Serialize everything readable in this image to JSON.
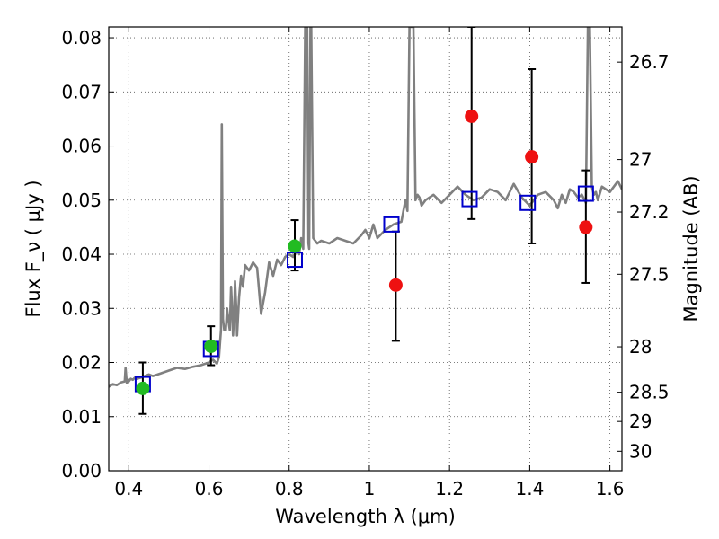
{
  "chart_data": {
    "type": "scatter",
    "title": "",
    "xlabel": "Wavelength  λ (μm)",
    "ylabel": "Flux  F_ν  ( μJy )",
    "ylabel_right": "Magnitude (AB)",
    "xlim": [
      0.35,
      1.63
    ],
    "ylim": [
      0.0,
      0.082
    ],
    "grid": true,
    "x_ticks": [
      0.4,
      0.6,
      0.8,
      1.0,
      1.2,
      1.4,
      1.6
    ],
    "x_tick_labels": [
      "0.4",
      "0.6",
      "0.8",
      "1",
      "1.2",
      "1.4",
      "1.6"
    ],
    "y_ticks": [
      0.0,
      0.01,
      0.02,
      0.03,
      0.04,
      0.05,
      0.06,
      0.07,
      0.08
    ],
    "y_tick_labels": [
      "0.00",
      "0.01",
      "0.02",
      "0.03",
      "0.04",
      "0.05",
      "0.06",
      "0.07",
      "0.08"
    ],
    "right_ticks": [
      {
        "label": "26.7",
        "flux": 0.0755
      },
      {
        "label": "27",
        "flux": 0.0575
      },
      {
        "label": "27.2",
        "flux": 0.0478
      },
      {
        "label": "27.5",
        "flux": 0.0363
      },
      {
        "label": "28",
        "flux": 0.0229
      },
      {
        "label": "28.5",
        "flux": 0.0145
      },
      {
        "label": "29",
        "flux": 0.0091
      },
      {
        "label": "30",
        "flux": 0.0036
      }
    ],
    "series": [
      {
        "kind": "spectrum",
        "color": "#808080",
        "x": [
          0.35,
          0.36,
          0.37,
          0.38,
          0.39,
          0.392,
          0.395,
          0.398,
          0.4,
          0.405,
          0.41,
          0.415,
          0.42,
          0.43,
          0.44,
          0.45,
          0.46,
          0.48,
          0.5,
          0.52,
          0.54,
          0.56,
          0.58,
          0.6,
          0.61,
          0.62,
          0.625,
          0.628,
          0.63,
          0.632,
          0.635,
          0.638,
          0.642,
          0.645,
          0.65,
          0.652,
          0.655,
          0.657,
          0.66,
          0.663,
          0.665,
          0.668,
          0.67,
          0.675,
          0.68,
          0.685,
          0.69,
          0.7,
          0.71,
          0.72,
          0.73,
          0.74,
          0.75,
          0.76,
          0.77,
          0.78,
          0.79,
          0.8,
          0.81,
          0.82,
          0.825,
          0.83,
          0.835,
          0.84,
          0.845,
          0.848,
          0.85,
          0.853,
          0.855,
          0.86,
          0.87,
          0.88,
          0.9,
          0.92,
          0.94,
          0.96,
          0.98,
          0.99,
          1.0,
          1.01,
          1.02,
          1.04,
          1.06,
          1.08,
          1.09,
          1.095,
          1.1,
          1.105,
          1.11,
          1.115,
          1.12,
          1.125,
          1.13,
          1.14,
          1.16,
          1.18,
          1.2,
          1.22,
          1.24,
          1.26,
          1.28,
          1.3,
          1.32,
          1.34,
          1.36,
          1.38,
          1.4,
          1.42,
          1.44,
          1.46,
          1.47,
          1.48,
          1.49,
          1.5,
          1.51,
          1.52,
          1.53,
          1.54,
          1.545,
          1.55,
          1.555,
          1.56,
          1.565,
          1.57,
          1.58,
          1.6,
          1.62,
          1.63
        ],
        "y": [
          0.0155,
          0.016,
          0.0158,
          0.0163,
          0.0165,
          0.019,
          0.0162,
          0.0168,
          0.0165,
          0.017,
          0.0168,
          0.0172,
          0.017,
          0.0172,
          0.0175,
          0.0178,
          0.0175,
          0.018,
          0.0185,
          0.019,
          0.0188,
          0.0192,
          0.0195,
          0.02,
          0.0205,
          0.0198,
          0.021,
          0.024,
          0.026,
          0.064,
          0.028,
          0.026,
          0.026,
          0.03,
          0.027,
          0.026,
          0.034,
          0.031,
          0.025,
          0.029,
          0.035,
          0.03,
          0.025,
          0.032,
          0.036,
          0.034,
          0.038,
          0.037,
          0.0385,
          0.0375,
          0.029,
          0.033,
          0.0385,
          0.036,
          0.039,
          0.038,
          0.0395,
          0.04,
          0.0395,
          0.041,
          0.04,
          0.043,
          0.041,
          0.082,
          0.082,
          0.042,
          0.041,
          0.082,
          0.082,
          0.043,
          0.042,
          0.0425,
          0.042,
          0.043,
          0.0425,
          0.042,
          0.0435,
          0.0445,
          0.043,
          0.0455,
          0.043,
          0.0445,
          0.0455,
          0.046,
          0.05,
          0.048,
          0.082,
          0.082,
          0.082,
          0.05,
          0.051,
          0.0505,
          0.049,
          0.05,
          0.051,
          0.0495,
          0.051,
          0.0525,
          0.051,
          0.05,
          0.0505,
          0.052,
          0.0515,
          0.05,
          0.053,
          0.0505,
          0.049,
          0.051,
          0.0515,
          0.05,
          0.0485,
          0.051,
          0.0495,
          0.052,
          0.0515,
          0.0505,
          0.051,
          0.0495,
          0.082,
          0.082,
          0.0525,
          0.051,
          0.0515,
          0.05,
          0.0525,
          0.0515,
          0.0535,
          0.052
        ]
      },
      {
        "kind": "model-photometry",
        "marker": "square",
        "color": "#0000cc",
        "x": [
          0.435,
          0.605,
          0.814,
          1.055,
          1.25,
          1.395,
          1.54
        ],
        "y": [
          0.016,
          0.0225,
          0.039,
          0.0455,
          0.0502,
          0.0495,
          0.0512
        ]
      },
      {
        "kind": "observed-optical",
        "marker": "circle",
        "color": "#22bb22",
        "x": [
          0.435,
          0.605,
          0.814
        ],
        "y": [
          0.0152,
          0.023,
          0.0415
        ],
        "err_low": [
          0.0047,
          0.0035,
          0.0045
        ],
        "err_high": [
          0.0048,
          0.0037,
          0.0048
        ]
      },
      {
        "kind": "observed-ir",
        "marker": "circle",
        "color": "#ee1111",
        "x": [
          1.066,
          1.255,
          1.405,
          1.54
        ],
        "y": [
          0.0343,
          0.0655,
          0.058,
          0.045
        ],
        "err_low": [
          0.0103,
          0.019,
          0.016,
          0.0103
        ],
        "err_high": [
          0.0099,
          0.0165,
          0.0162,
          0.0105
        ]
      }
    ]
  }
}
